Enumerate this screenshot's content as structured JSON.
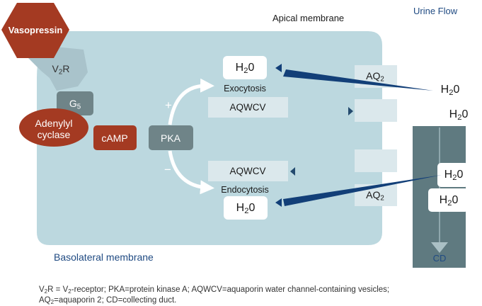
{
  "labels": {
    "apical_membrane": "Apical membrane",
    "urine_flow": "Urine Flow",
    "basolateral_membrane": "Basolateral membrane",
    "vasopressin": "Vasopressin",
    "v2r_main": "V",
    "v2r_sub": "2",
    "v2r_tail": "R",
    "g_main": "G",
    "g_sub": "5",
    "adenylyl": "Adenylyl",
    "cyclase": "cyclase",
    "camp": "cAMP",
    "pka": "PKA",
    "plus": "+",
    "minus": "−",
    "exocytosis": "Exocytosis",
    "endocytosis": "Endocytosis",
    "aqwcv_top": "AQWCV",
    "aqwcv_bottom": "AQWCV",
    "aq_main": "AQ",
    "aq_sub": "2",
    "h2o_h": "H",
    "h2o_sub": "2",
    "h2o_o": "0",
    "cd": "CD"
  },
  "footnote": {
    "l1_a": "V",
    "l1_a_sub": "2",
    "l1_b": "R = V",
    "l1_b_sub": "2",
    "l1_c": "-receptor; PKA=protein kinase A; AQWCV=aquaporin water channel-containing vesicles;",
    "l2_a": "AQ",
    "l2_a_sub": "2",
    "l2_b": "=aquaporin 2; CD=collecting duct."
  },
  "colors": {
    "cell": "#bcd8df",
    "membrane_block": "#dbe8ec",
    "duct": "#5f7a80",
    "vasopressin": "#a43a22",
    "receptor": "#a9c3cb",
    "node_grey": "#6f8488",
    "node_red": "#a43a22",
    "flow_arrow": "#123f78",
    "accent_text": "#1f4a82"
  }
}
